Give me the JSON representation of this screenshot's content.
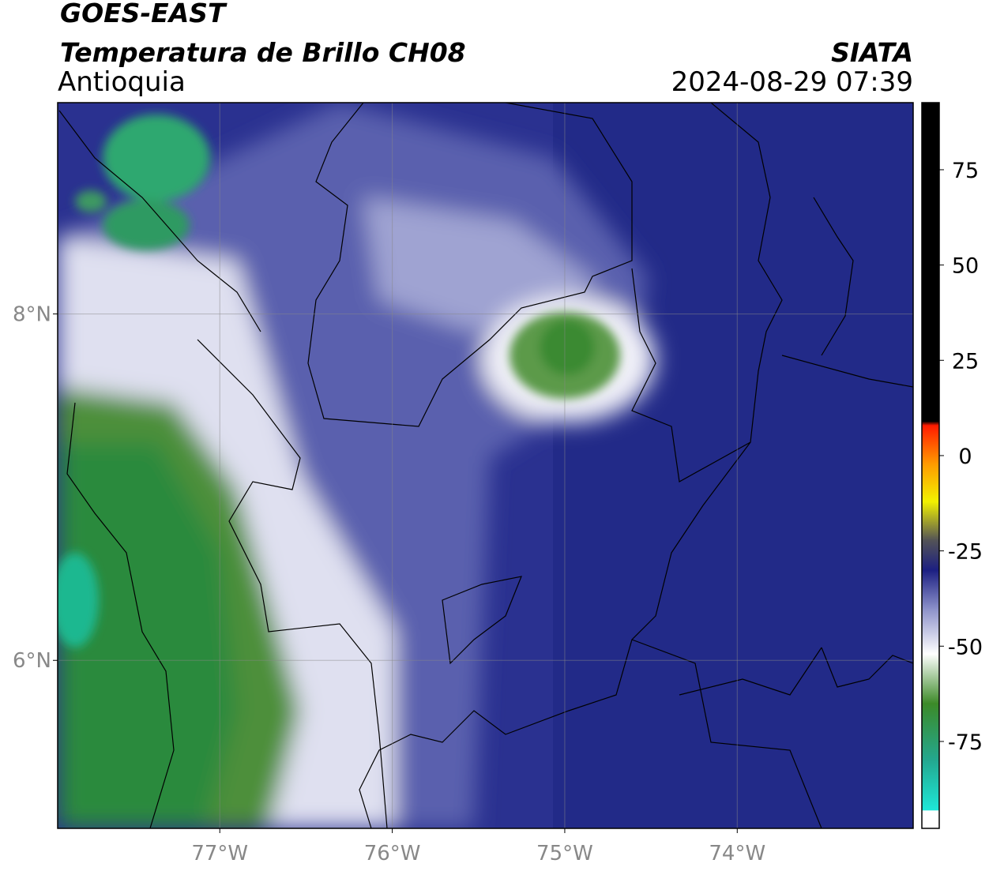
{
  "map": {
    "header": {
      "title": "GOES-EAST",
      "subtitle": "Temperatura de Brillo CH08",
      "region": "Antioquia",
      "source": "SIATA",
      "datetime": "2024-08-29 07:39"
    },
    "xlim": [
      -77.94,
      -72.98
    ],
    "ylim": [
      5.03,
      9.22
    ],
    "xticks": [
      {
        "value": -77,
        "label": "77°W"
      },
      {
        "value": -76,
        "label": "76°W"
      },
      {
        "value": -75,
        "label": "75°W"
      },
      {
        "value": -74,
        "label": "74°W"
      }
    ],
    "yticks": [
      {
        "value": 8,
        "label": "8°N"
      },
      {
        "value": 6,
        "label": "6°N"
      }
    ],
    "grid": true,
    "colorbar": {
      "lim": [
        -97.8,
        92.6
      ],
      "ticks": [
        75,
        50,
        25,
        0,
        -25,
        -50,
        -75
      ],
      "stops": [
        {
          "value": -97.8,
          "color": "#ffffff"
        },
        {
          "value": -93,
          "color": "#ffffff"
        },
        {
          "value": -93,
          "color": "#1ee8d8"
        },
        {
          "value": -80,
          "color": "#23a890"
        },
        {
          "value": -65,
          "color": "#3c8a28"
        },
        {
          "value": -52,
          "color": "#ffffff"
        },
        {
          "value": -40,
          "color": "#8a8fc8"
        },
        {
          "value": -30,
          "color": "#1c1f82"
        },
        {
          "value": -22,
          "color": "#555555"
        },
        {
          "value": -12,
          "color": "#f2f200"
        },
        {
          "value": -2,
          "color": "#ff9900"
        },
        {
          "value": 8,
          "color": "#ff1a00"
        },
        {
          "value": 9,
          "color": "#000000"
        },
        {
          "value": 92.6,
          "color": "#000000"
        }
      ]
    }
  }
}
